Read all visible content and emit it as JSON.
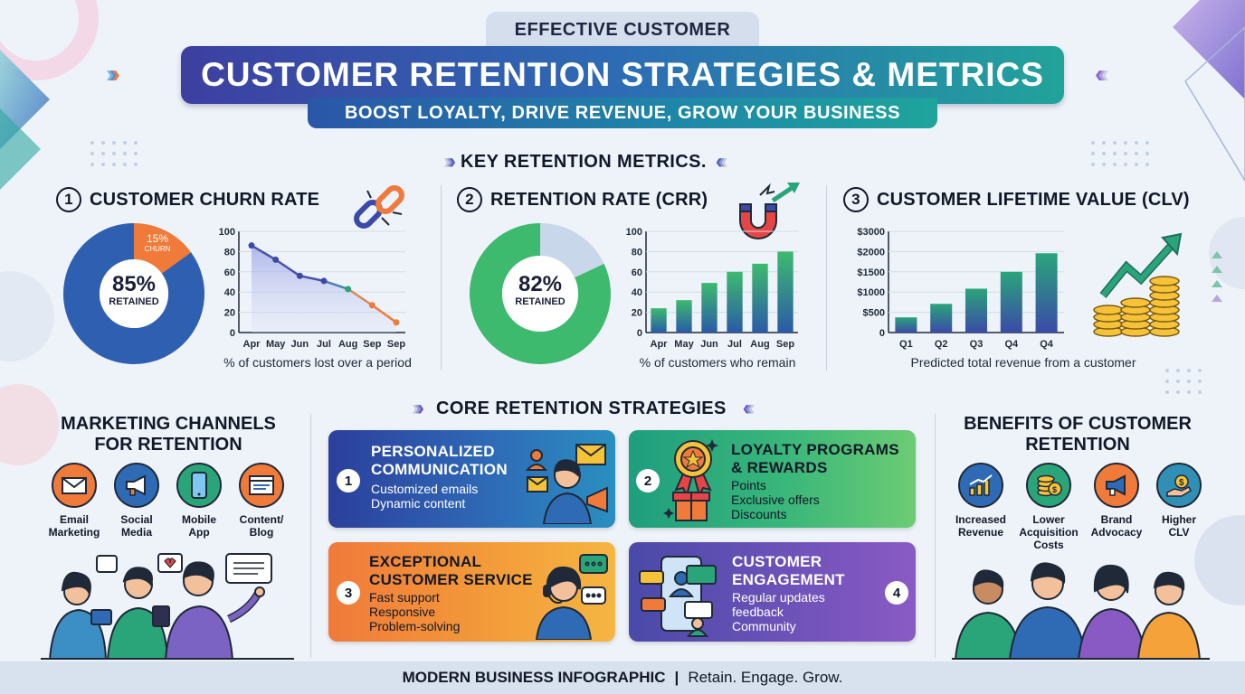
{
  "header": {
    "eyebrow": "EFFECTIVE CUSTOMER",
    "title": "CUSTOMER RETENTION STRATEGIES & METRICS",
    "subtitle": "BOOST LOYALTY, DRIVE REVENUE, GROW YOUR BUSINESS"
  },
  "metrics_heading": "KEY RETENTION METRICS.",
  "metrics": [
    {
      "number": "1",
      "title": "CUSTOMER CHURN RATE",
      "donut_value": "85%",
      "donut_label": "RETAINED",
      "slice_value": "15%",
      "slice_label": "CHURN",
      "caption": "% of customers lost over a period"
    },
    {
      "number": "2",
      "title": "RETENTION RATE (CRR)",
      "donut_value": "82%",
      "donut_label": "RETAINED",
      "caption": "% of customers who remain"
    },
    {
      "number": "3",
      "title": "CUSTOMER LIFETIME VALUE (CLV)",
      "caption": "Predicted total revenue from a customer"
    }
  ],
  "chart_data": [
    {
      "type": "pie",
      "values": [
        85,
        15
      ],
      "categories": [
        "RETAINED",
        "CHURN"
      ]
    },
    {
      "type": "line",
      "categories": [
        "Apr",
        "May",
        "Jun",
        "Jul",
        "Aug",
        "Sep",
        "Sep"
      ],
      "values": [
        86,
        72,
        56,
        51,
        43,
        27,
        10
      ],
      "ylim": [
        0,
        100
      ],
      "yticks": [
        "0",
        "20",
        "40",
        "60",
        "80",
        "100"
      ]
    },
    {
      "type": "pie",
      "values": [
        82,
        18
      ],
      "categories": [
        "RETAINED",
        ""
      ]
    },
    {
      "type": "bar",
      "categories": [
        "Apr",
        "May",
        "Jun",
        "Jul",
        "Aug",
        "Sep"
      ],
      "values": [
        24,
        32,
        49,
        60,
        68,
        80
      ],
      "ylim": [
        0,
        100
      ],
      "yticks": [
        "0",
        "20",
        "40",
        "60",
        "80",
        "100"
      ]
    },
    {
      "type": "bar",
      "categories": [
        "Q1",
        "Q2",
        "Q3",
        "Q4",
        "Q4"
      ],
      "values": [
        450,
        850,
        1300,
        1800,
        2350
      ],
      "ylim": [
        0,
        3000
      ],
      "yticks": [
        "0",
        "$500",
        "$1000",
        "$1500",
        "$2000",
        "$3000"
      ]
    }
  ],
  "channels": {
    "heading_line1": "MARKETING CHANNELS",
    "heading_line2": "FOR RETENTION",
    "items": [
      {
        "line1": "Email",
        "line2": "Marketing",
        "icon": "envelope-icon",
        "color": "#f07a3a"
      },
      {
        "line1": "Social",
        "line2": "Media",
        "icon": "megaphone-icon",
        "color": "#2f6bb5"
      },
      {
        "line1": "Mobile",
        "line2": "App",
        "icon": "smartphone-icon",
        "color": "#2aa57a"
      },
      {
        "line1": "Content/",
        "line2": "Blog",
        "icon": "browser-window-icon",
        "color": "#f07a3a"
      }
    ]
  },
  "strategies": {
    "heading": "CORE RETENTION STRATEGIES",
    "cards": [
      {
        "number": "1",
        "title_line1": "PERSONALIZED",
        "title_line2": "COMMUNICATION",
        "items": [
          "Customized emails",
          "Dynamic content"
        ]
      },
      {
        "number": "2",
        "title_line1": "LOYALTY PROGRAMS",
        "title_line2": "& REWARDS",
        "items": [
          "Points",
          "Exclusive offers",
          "Discounts"
        ]
      },
      {
        "number": "3",
        "title_line1": "EXCEPTIONAL",
        "title_line2": "CUSTOMER SERVICE",
        "items": [
          "Fast support",
          "Responsive",
          "Problem-solving"
        ]
      },
      {
        "number": "4",
        "title_line1": "CUSTOMER",
        "title_line2": "ENGAGEMENT",
        "items": [
          "Regular updates",
          "feedback",
          "Community"
        ]
      }
    ]
  },
  "benefits": {
    "heading_line1": "BENEFITS OF CUSTOMER",
    "heading_line2": "RETENTION",
    "items": [
      {
        "line1": "Increased",
        "line2": "Revenue",
        "line3": "",
        "icon": "bar-growth-icon",
        "color": "#2f6bb5"
      },
      {
        "line1": "Lower",
        "line2": "Acquisition",
        "line3": "Costs",
        "icon": "coins-icon",
        "color": "#2aa57a"
      },
      {
        "line1": "Brand",
        "line2": "Advocacy",
        "line3": "",
        "icon": "megaphone-icon",
        "color": "#f07a3a"
      },
      {
        "line1": "Higher",
        "line2": "CLV",
        "line3": "",
        "icon": "hand-dollar-icon",
        "color": "#2f8fb5"
      }
    ]
  },
  "footer": {
    "bold": "MODERN BUSINESS INFOGRAPHIC",
    "separator": "|",
    "tagline": "Retain. Engage. Grow."
  }
}
